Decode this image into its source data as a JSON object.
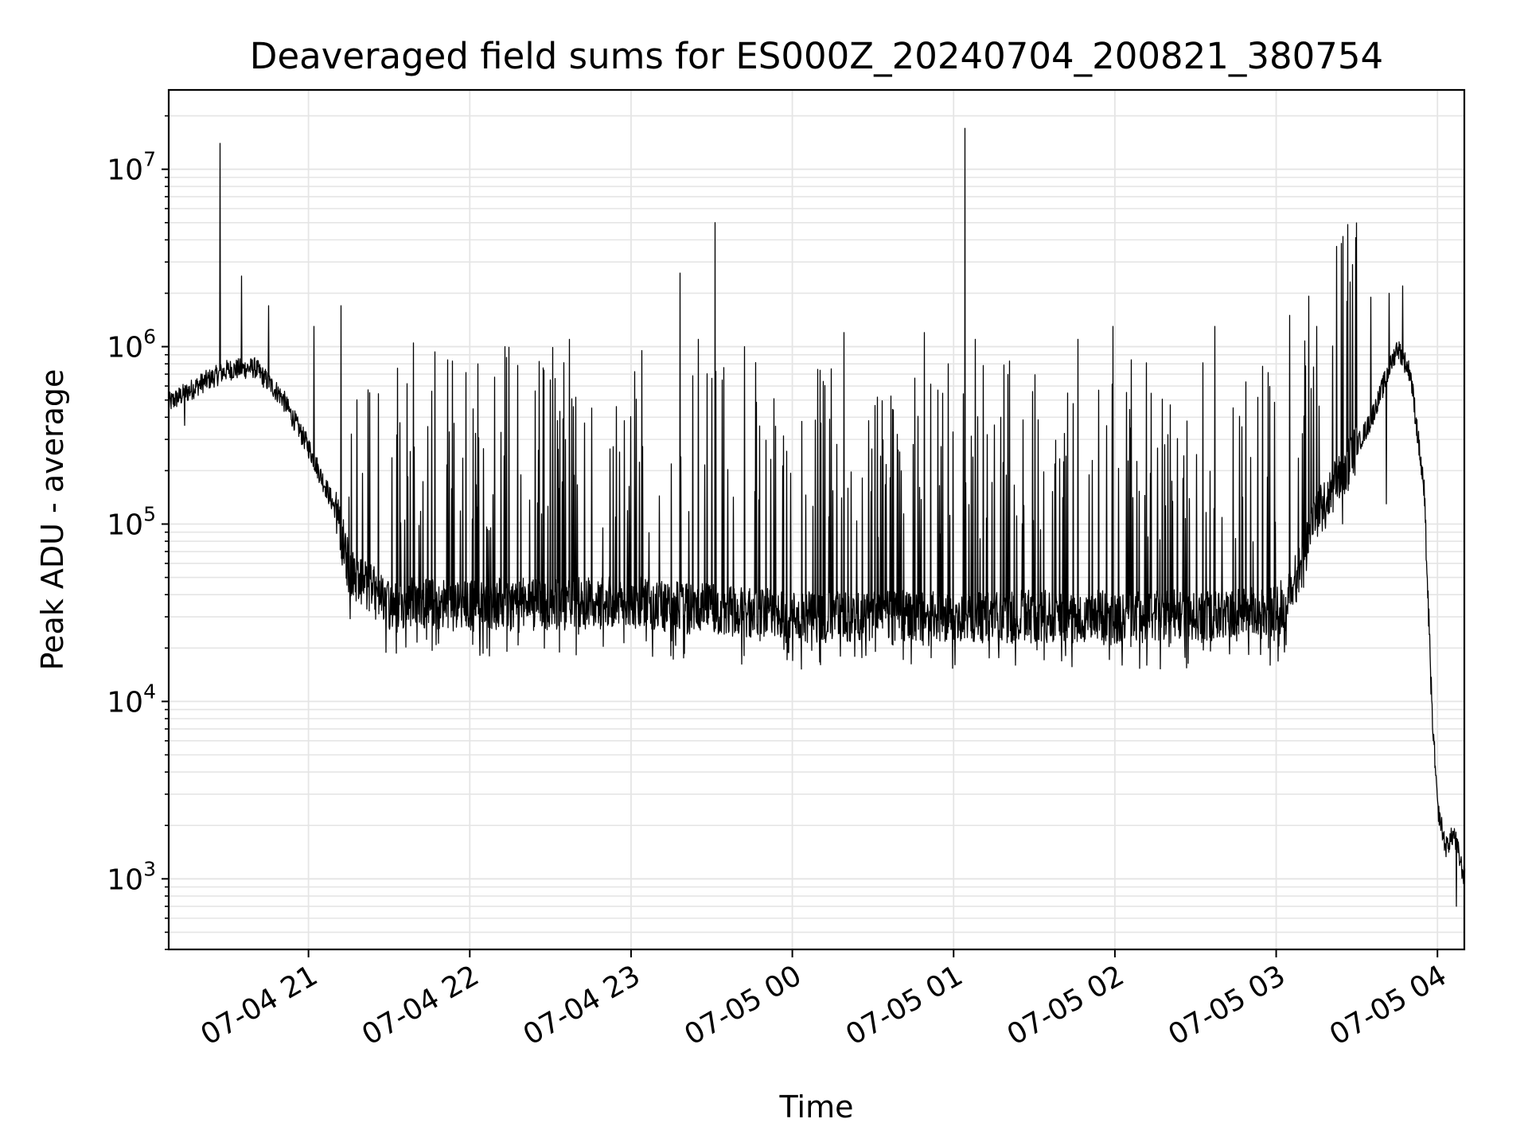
{
  "chart_data": {
    "type": "line",
    "title": "Deaveraged field sums for ES000Z_20240704_200821_380754",
    "xlabel": "Time",
    "ylabel": "Peak ADU - average",
    "yscale": "log",
    "ylim": [
      400,
      28000000
    ],
    "xlim": [
      "2024-07-04 20:08",
      "2024-07-05 04:10"
    ],
    "grid": "major and minor",
    "line_color": "#000000",
    "grid_color": "#e5e5e5",
    "x_ticks": [
      {
        "value": "2024-07-04 21:00",
        "label": "07-04 21"
      },
      {
        "value": "2024-07-04 22:00",
        "label": "07-04 22"
      },
      {
        "value": "2024-07-04 23:00",
        "label": "07-04 23"
      },
      {
        "value": "2024-07-05 00:00",
        "label": "07-05 00"
      },
      {
        "value": "2024-07-05 01:00",
        "label": "07-05 01"
      },
      {
        "value": "2024-07-05 02:00",
        "label": "07-05 02"
      },
      {
        "value": "2024-07-05 03:00",
        "label": "07-05 03"
      },
      {
        "value": "2024-07-05 04:00",
        "label": "07-05 04"
      }
    ],
    "y_ticks": [
      {
        "value": 1000,
        "base": "10",
        "exp": "3"
      },
      {
        "value": 10000,
        "base": "10",
        "exp": "4"
      },
      {
        "value": 100000,
        "base": "10",
        "exp": "5"
      },
      {
        "value": 1000000,
        "base": "10",
        "exp": "6"
      },
      {
        "value": 10000000,
        "base": "10",
        "exp": "7"
      }
    ],
    "baseline": {
      "x": [
        "2024-07-04 20:08",
        "2024-07-04 20:20",
        "2024-07-04 20:30",
        "2024-07-04 20:40",
        "2024-07-04 20:50",
        "2024-07-04 21:00",
        "2024-07-04 21:10",
        "2024-07-04 21:15",
        "2024-07-04 21:30",
        "2024-07-04 22:00",
        "2024-07-04 23:00",
        "2024-07-05 00:00",
        "2024-07-05 01:00",
        "2024-07-05 02:00",
        "2024-07-05 02:40",
        "2024-07-05 03:00",
        "2024-07-05 03:05",
        "2024-07-05 03:15",
        "2024-07-05 03:25",
        "2024-07-05 03:35",
        "2024-07-05 03:45",
        "2024-07-05 03:50",
        "2024-07-05 03:55",
        "2024-07-05 03:58",
        "2024-07-05 04:00",
        "2024-07-05 04:03",
        "2024-07-05 04:06",
        "2024-07-05 04:10"
      ],
      "y": [
        480000,
        620000,
        740000,
        760000,
        520000,
        270000,
        120000,
        55000,
        36000,
        35000,
        36000,
        30000,
        30000,
        30000,
        31000,
        32000,
        40000,
        110000,
        200000,
        380000,
        1000000,
        700000,
        150000,
        8000,
        2500,
        1500,
        1800,
        1000
      ]
    },
    "spikes": [
      {
        "x": "2024-07-04 20:27",
        "y": 14000000
      },
      {
        "x": "2024-07-04 20:35",
        "y": 2500000
      },
      {
        "x": "2024-07-04 20:45",
        "y": 1700000
      },
      {
        "x": "2024-07-04 21:02",
        "y": 1300000
      },
      {
        "x": "2024-07-04 21:39",
        "y": 1050000
      },
      {
        "x": "2024-07-04 22:13",
        "y": 1000000
      },
      {
        "x": "2024-07-04 22:37",
        "y": 1100000
      },
      {
        "x": "2024-07-04 23:04",
        "y": 950000
      },
      {
        "x": "2024-07-04 23:18",
        "y": 2600000
      },
      {
        "x": "2024-07-04 23:25",
        "y": 1100000
      },
      {
        "x": "2024-07-04 23:31",
        "y": 5000000
      },
      {
        "x": "2024-07-04 23:42",
        "y": 1000000
      },
      {
        "x": "2024-07-05 00:19",
        "y": 1200000
      },
      {
        "x": "2024-07-05 00:49",
        "y": 1200000
      },
      {
        "x": "2024-07-05 01:04",
        "y": 17000000
      },
      {
        "x": "2024-07-05 01:08",
        "y": 1100000
      },
      {
        "x": "2024-07-05 01:46",
        "y": 1100000
      },
      {
        "x": "2024-07-05 01:59",
        "y": 1300000
      },
      {
        "x": "2024-07-05 02:37",
        "y": 1300000
      },
      {
        "x": "2024-07-05 03:05",
        "y": 1500000
      },
      {
        "x": "2024-07-05 03:15",
        "y": 1300000
      },
      {
        "x": "2024-07-05 03:35",
        "y": 1900000
      },
      {
        "x": "2024-07-05 03:42",
        "y": 2000000
      },
      {
        "x": "2024-07-05 03:47",
        "y": 2200000
      }
    ],
    "dips": [
      {
        "x": "2024-07-04 20:14",
        "y": 360000
      },
      {
        "x": "2024-07-05 00:00",
        "y": 17000
      },
      {
        "x": "2024-07-05 01:23",
        "y": 16000
      },
      {
        "x": "2024-07-05 02:12",
        "y": 16000
      },
      {
        "x": "2024-07-05 03:03",
        "y": 19000
      },
      {
        "x": "2024-07-05 03:41",
        "y": 130000
      },
      {
        "x": "2024-07-05 04:07",
        "y": 700
      }
    ]
  }
}
